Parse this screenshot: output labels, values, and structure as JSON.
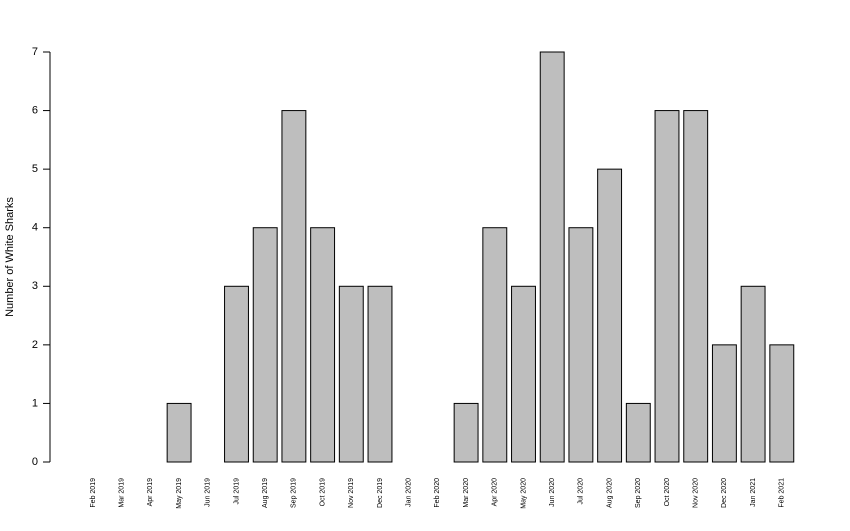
{
  "chart_data": {
    "type": "bar",
    "y_label": "Number of White Sharks",
    "categories": [
      "Feb 2019",
      "Mar 2019",
      "Apr 2019",
      "May 2019",
      "Jun 2019",
      "Jul 2019",
      "Aug 2019",
      "Sep 2019",
      "Oct 2019",
      "Nov 2019",
      "Dec 2019",
      "Jan 2020",
      "Feb 2020",
      "Mar 2020",
      "Apr 2020",
      "May 2020",
      "Jun 2020",
      "Jul 2020",
      "Aug 2020",
      "Sep 2020",
      "Oct 2020",
      "Nov 2020",
      "Dec 2020",
      "Jan 2021",
      "Feb 2021"
    ],
    "values": [
      0,
      0,
      0,
      1,
      0,
      3,
      4,
      6,
      4,
      3,
      3,
      0,
      0,
      1,
      4,
      3,
      7,
      4,
      5,
      1,
      6,
      6,
      2,
      3,
      2
    ],
    "color": "#bebebe",
    "ylim": [
      0,
      7
    ],
    "yticks": [
      0,
      1,
      2,
      3,
      4,
      5,
      6,
      7
    ],
    "grid": false
  }
}
